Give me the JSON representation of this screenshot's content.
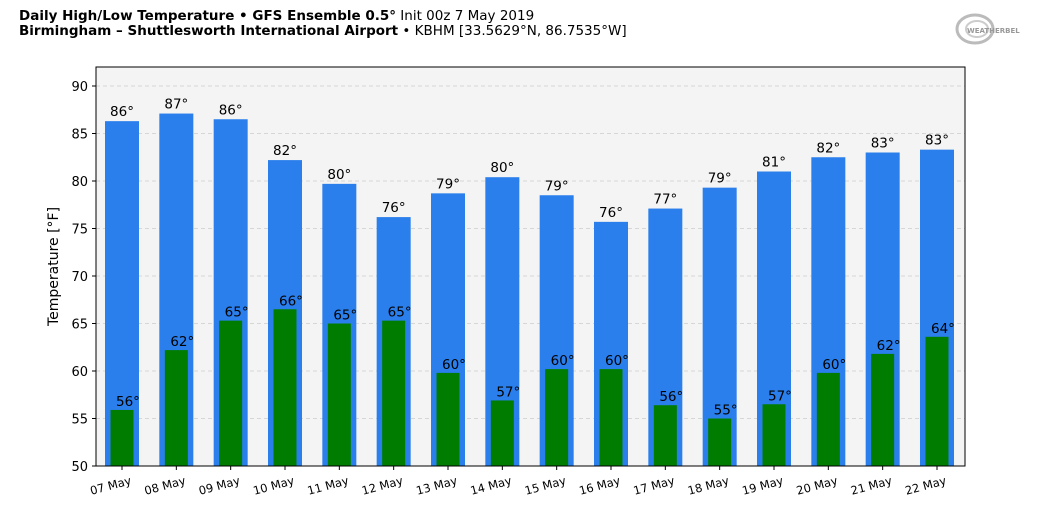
{
  "title": {
    "line1_bold": "Daily High/Low Temperature • GFS Ensemble 0.5°",
    "line1_rest": " Init 00z 7 May 2019",
    "line2_bold": "Birmingham – Shuttlesworth International Airport",
    "line2_rest": " • KBHM [33.5629°N, 86.7535°W]"
  },
  "logo": "WeatherBELL",
  "chart_data": {
    "type": "bar",
    "categories": [
      "07 May",
      "08 May",
      "09 May",
      "10 May",
      "11 May",
      "12 May",
      "13 May",
      "14 May",
      "15 May",
      "16 May",
      "17 May",
      "18 May",
      "19 May",
      "20 May",
      "21 May",
      "22 May"
    ],
    "series": [
      {
        "name": "High",
        "color": "#2a7fec",
        "values": [
          86.3,
          87.1,
          86.5,
          82.2,
          79.7,
          76.2,
          78.7,
          80.4,
          78.5,
          75.7,
          77.1,
          79.3,
          81.0,
          82.5,
          83.0,
          83.3
        ],
        "labels": [
          "86°",
          "87°",
          "86°",
          "82°",
          "80°",
          "76°",
          "79°",
          "80°",
          "79°",
          "76°",
          "77°",
          "79°",
          "81°",
          "82°",
          "83°",
          "83°"
        ]
      },
      {
        "name": "Low",
        "color": "#007c00",
        "values": [
          55.9,
          62.2,
          65.3,
          66.5,
          65.0,
          65.3,
          59.8,
          56.9,
          60.2,
          60.2,
          56.4,
          55.0,
          56.5,
          59.8,
          61.8,
          63.6
        ],
        "labels": [
          "56°",
          "62°",
          "65°",
          "66°",
          "65°",
          "65°",
          "60°",
          "57°",
          "60°",
          "60°",
          "56°",
          "55°",
          "57°",
          "60°",
          "62°",
          "64°"
        ]
      }
    ],
    "ylabel": "Temperature [°F]",
    "xlabel": "",
    "ylim": [
      50,
      92
    ],
    "yticks": [
      50,
      55,
      60,
      65,
      70,
      75,
      80,
      85,
      90
    ],
    "grid": true
  }
}
